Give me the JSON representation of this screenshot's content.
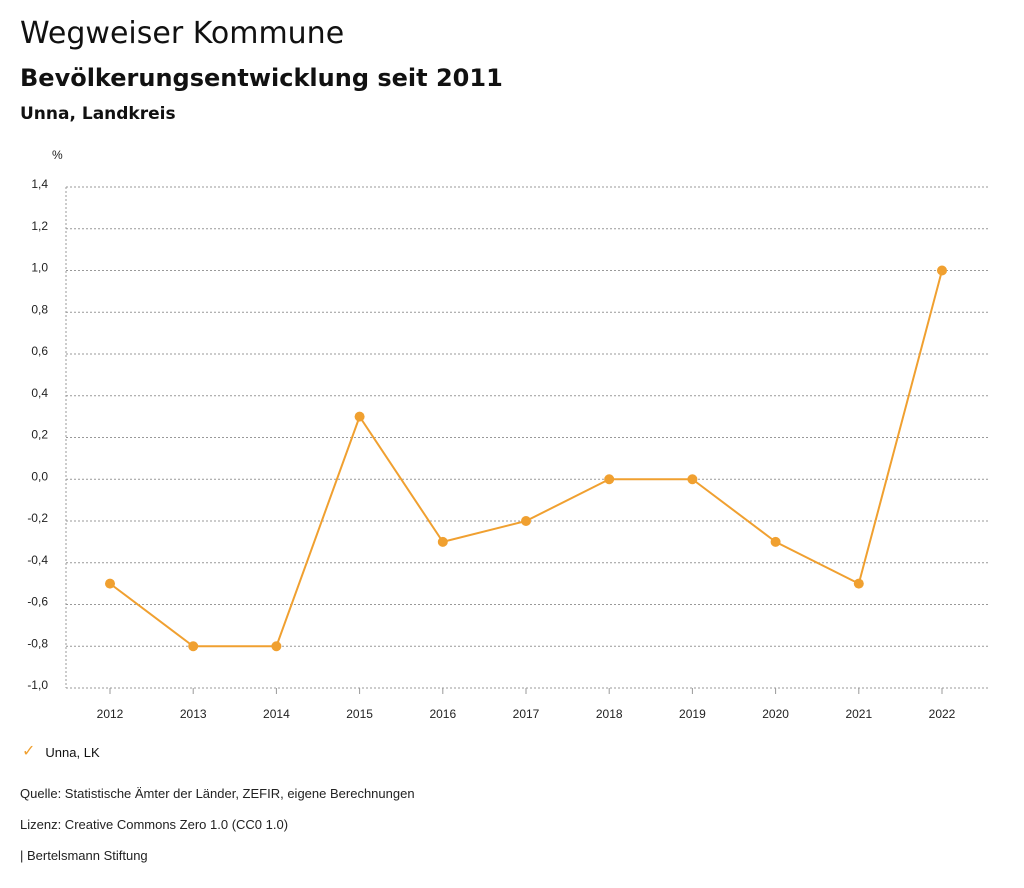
{
  "header": {
    "title": "Wegweiser Kommune",
    "subtitle": "Bevölkerungsentwicklung seit 2011",
    "region": "Unna, Landkreis"
  },
  "legend": {
    "label": "Unna, LK",
    "icon": "check-icon"
  },
  "footer": {
    "source": "Quelle: Statistische Ämter der Länder, ZEFIR, eigene Berechnungen",
    "license": "Lizenz: Creative Commons Zero 1.0 (CC0 1.0)",
    "brand": "| Bertelsmann Stiftung"
  },
  "chart_data": {
    "type": "line",
    "ylabel": "%",
    "ylim": [
      -1.0,
      1.4
    ],
    "yticks": [
      "-1,0",
      "-0,8",
      "-0,6",
      "-0,4",
      "-0,2",
      "0,0",
      "0,2",
      "0,4",
      "0,6",
      "0,8",
      "1,0",
      "1,2",
      "1,4"
    ],
    "ytick_values": [
      -1.0,
      -0.8,
      -0.6,
      -0.4,
      -0.2,
      0.0,
      0.2,
      0.4,
      0.6,
      0.8,
      1.0,
      1.2,
      1.4
    ],
    "categories": [
      "2012",
      "2013",
      "2014",
      "2015",
      "2016",
      "2017",
      "2018",
      "2019",
      "2020",
      "2021",
      "2022"
    ],
    "grid": true,
    "legend_position": "bottom-left",
    "series": [
      {
        "name": "Unna, LK",
        "color": "#f0a030",
        "values": [
          -0.5,
          -0.8,
          -0.8,
          0.3,
          -0.3,
          -0.2,
          0.0,
          0.0,
          -0.3,
          -0.5,
          1.0
        ]
      }
    ]
  }
}
